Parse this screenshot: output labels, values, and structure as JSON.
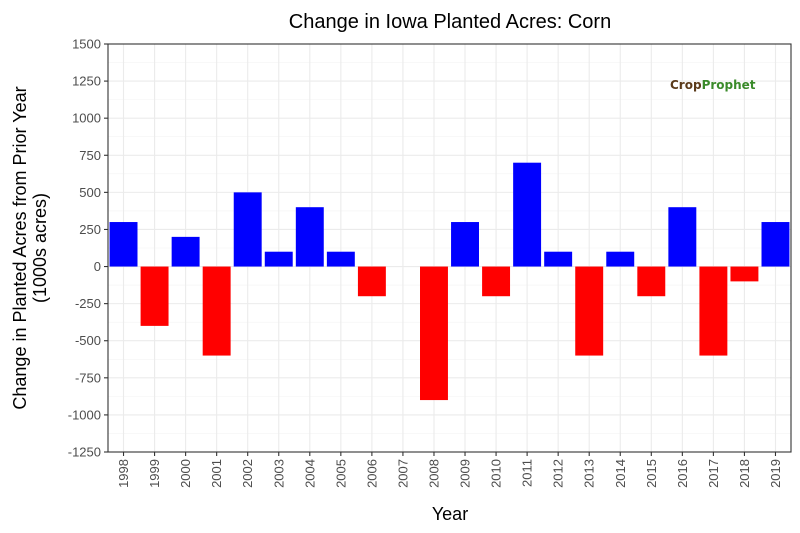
{
  "chart_data": {
    "type": "bar",
    "title": "Change in Iowa Planted Acres:  Corn",
    "xlabel": "Year",
    "ylabel_line1": "Change in Planted Acres from Prior Year",
    "ylabel_line2": "(1000s acres)",
    "categories": [
      "1998",
      "1999",
      "2000",
      "2001",
      "2002",
      "2003",
      "2004",
      "2005",
      "2006",
      "2007",
      "2008",
      "2009",
      "2010",
      "2011",
      "2012",
      "2013",
      "2014",
      "2015",
      "2016",
      "2017",
      "2018",
      "2019"
    ],
    "values": [
      300,
      -400,
      200,
      -600,
      500,
      100,
      400,
      100,
      -200,
      0,
      -900,
      300,
      -200,
      700,
      100,
      -600,
      100,
      -200,
      400,
      -600,
      -100,
      300
    ],
    "ylim": [
      -1250,
      1500
    ],
    "yticks": [
      -1250,
      -1000,
      -750,
      -500,
      -250,
      0,
      250,
      500,
      750,
      1000,
      1250,
      1500
    ],
    "positive_color": "#0000ff",
    "negative_color": "#ff0000",
    "grid": true,
    "legend": "none"
  },
  "logo": {
    "crop": "Crop",
    "prophet": "Prophet"
  }
}
